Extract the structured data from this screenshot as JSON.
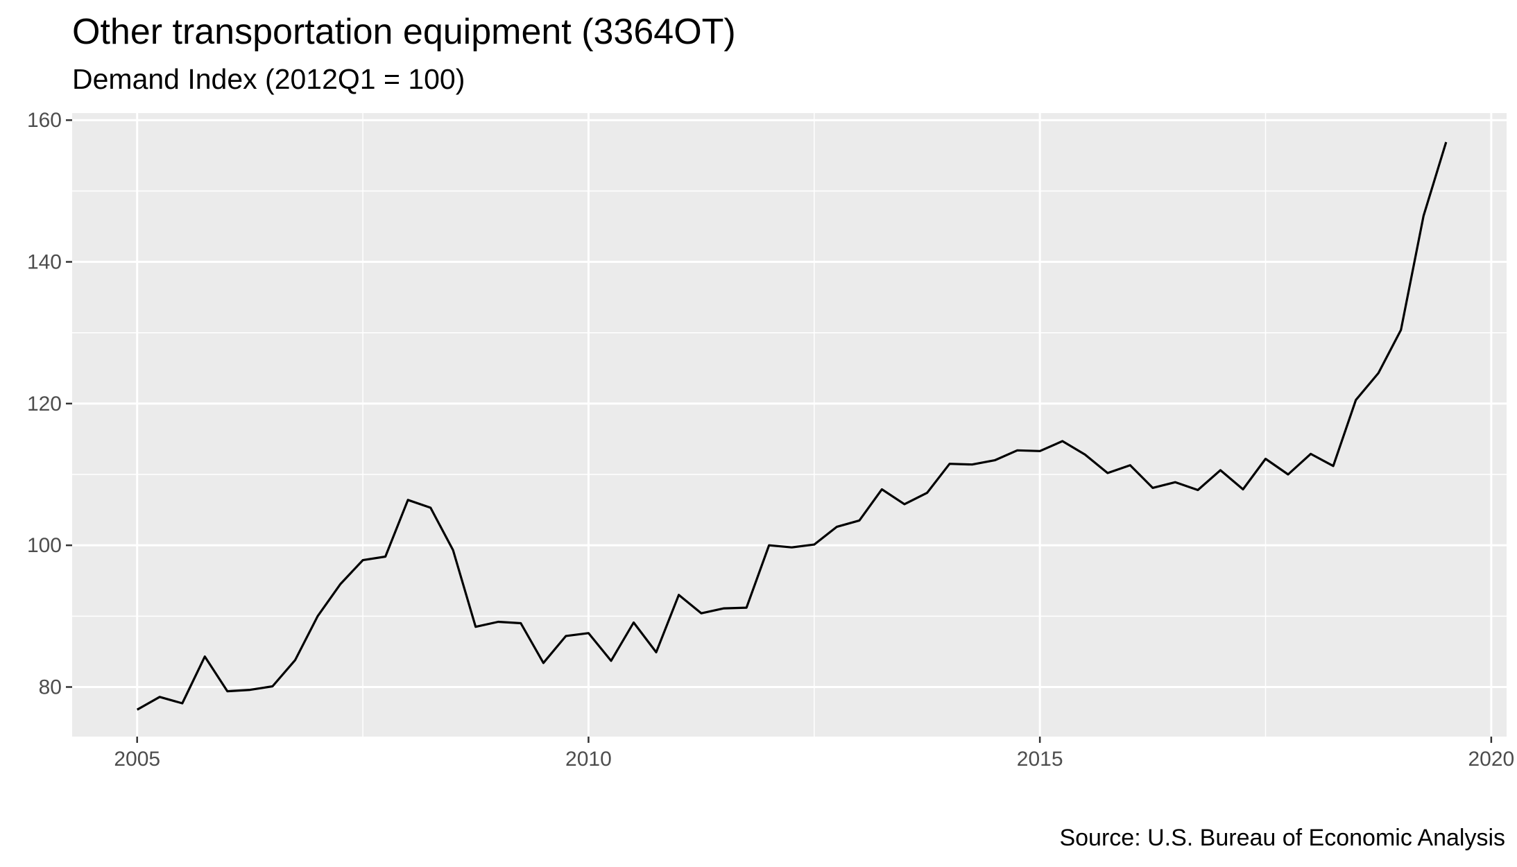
{
  "chart_data": {
    "type": "line",
    "title": "Other transportation equipment (3364OT)",
    "subtitle": "Demand Index (2012Q1 = 100)",
    "caption": "Source: U.S. Bureau of Economic Analysis",
    "xlabel": "",
    "ylabel": "",
    "xlim": [
      2004.28,
      2020.17
    ],
    "ylim": [
      73,
      161
    ],
    "x_ticks": [
      2005,
      2010,
      2015,
      2020
    ],
    "x_tick_labels": [
      "2005",
      "2010",
      "2015",
      "2020"
    ],
    "y_ticks": [
      80,
      100,
      120,
      140,
      160
    ],
    "y_tick_labels": [
      "80",
      "100",
      "120",
      "140",
      "160"
    ],
    "grid": true,
    "legend": "none",
    "colors": {
      "panel": "#ebebeb",
      "grid": "#ffffff",
      "line": "#000000",
      "tick_text": "#4d4d4d"
    },
    "series": [
      {
        "x": [
          2005.0,
          2005.25,
          2005.5,
          2005.75,
          2006.0,
          2006.25,
          2006.5,
          2006.75,
          2007.0,
          2007.25,
          2007.5,
          2007.75,
          2008.0,
          2008.25,
          2008.5,
          2008.75,
          2009.0,
          2009.25,
          2009.5,
          2009.75,
          2010.0,
          2010.25,
          2010.5,
          2010.75,
          2011.0,
          2011.25,
          2011.5,
          2011.75,
          2012.0,
          2012.25,
          2012.5,
          2012.75,
          2013.0,
          2013.25,
          2013.5,
          2013.75,
          2014.0,
          2014.25,
          2014.5,
          2014.75,
          2015.0,
          2015.25,
          2015.5,
          2015.75,
          2016.0,
          2016.25,
          2016.5,
          2016.75,
          2017.0,
          2017.25,
          2017.5,
          2017.75,
          2018.0,
          2018.25,
          2018.5,
          2018.75,
          2019.0,
          2019.25,
          2019.5
        ],
        "values": [
          76.8,
          78.6,
          77.7,
          84.3,
          79.4,
          79.6,
          80.1,
          83.8,
          90.0,
          94.5,
          97.9,
          98.4,
          106.4,
          105.3,
          99.3,
          88.5,
          89.2,
          89.0,
          83.4,
          87.2,
          87.6,
          83.7,
          89.1,
          84.9,
          93.0,
          90.4,
          91.1,
          91.2,
          100.0,
          99.7,
          100.1,
          102.6,
          103.5,
          107.9,
          105.8,
          107.4,
          111.5,
          111.4,
          112.0,
          113.4,
          113.3,
          114.7,
          112.8,
          110.2,
          111.3,
          108.1,
          108.9,
          107.8,
          110.6,
          107.9,
          112.2,
          110.0,
          112.9,
          111.2,
          120.5,
          124.3,
          130.4,
          146.5,
          156.9
        ]
      }
    ]
  }
}
